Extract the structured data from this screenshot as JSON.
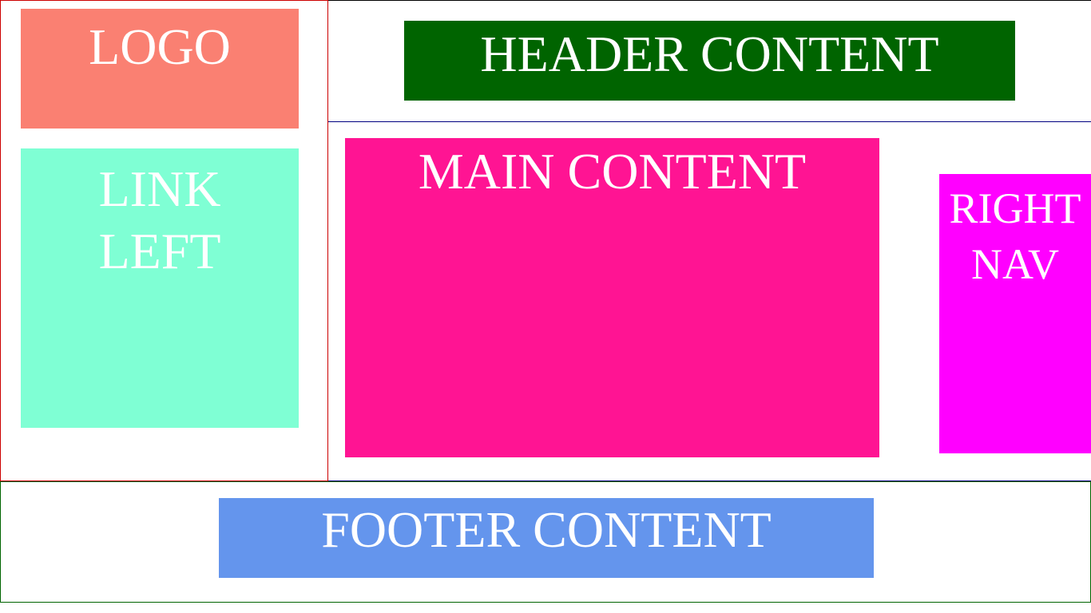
{
  "colors": {
    "logo": "#fa8072",
    "link_left": "#7fffd4",
    "header": "#006400",
    "main": "#ff1493",
    "right_nav": "#ff00ff",
    "footer": "#6495ed",
    "text": "#ffffff"
  },
  "logo": {
    "label": "LOGO"
  },
  "link_left": {
    "lines": [
      "LINK",
      "LEFT"
    ]
  },
  "header": {
    "label": "HEADER CONTENT"
  },
  "main": {
    "label": "MAIN CONTENT"
  },
  "right_nav": {
    "lines": [
      "RIGHT",
      "NAV"
    ]
  },
  "footer": {
    "label": "FOOTER CONTENT"
  }
}
